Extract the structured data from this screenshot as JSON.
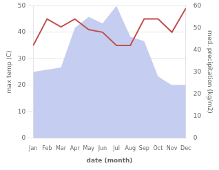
{
  "chart_data": {
    "type": "line",
    "categories": [
      "Jan",
      "Feb",
      "Mar",
      "Apr",
      "May",
      "Jun",
      "Jul",
      "Aug",
      "Sep",
      "Oct",
      "Nov",
      "Dec"
    ],
    "series": [
      {
        "type": "area",
        "axis": "y2",
        "color": "#c5cef0",
        "values": [
          30,
          31,
          32,
          50,
          55,
          52,
          60,
          46,
          44,
          28,
          24,
          24
        ]
      },
      {
        "type": "line",
        "axis": "y",
        "color": "#c0504d",
        "values": [
          35,
          45,
          42,
          45,
          41,
          40,
          35,
          35,
          45,
          45,
          40,
          49
        ]
      }
    ],
    "xlabel": "date (month)",
    "ylabel": "max temp (C)",
    "y2label": "med. precipitation (kg/m2)",
    "ylim": [
      0,
      50
    ],
    "yticks": [
      0,
      10,
      20,
      30,
      40,
      50
    ],
    "y2lim": [
      0,
      60
    ],
    "y2ticks": [
      0,
      10,
      20,
      30,
      40,
      50,
      60
    ],
    "grid": true
  }
}
